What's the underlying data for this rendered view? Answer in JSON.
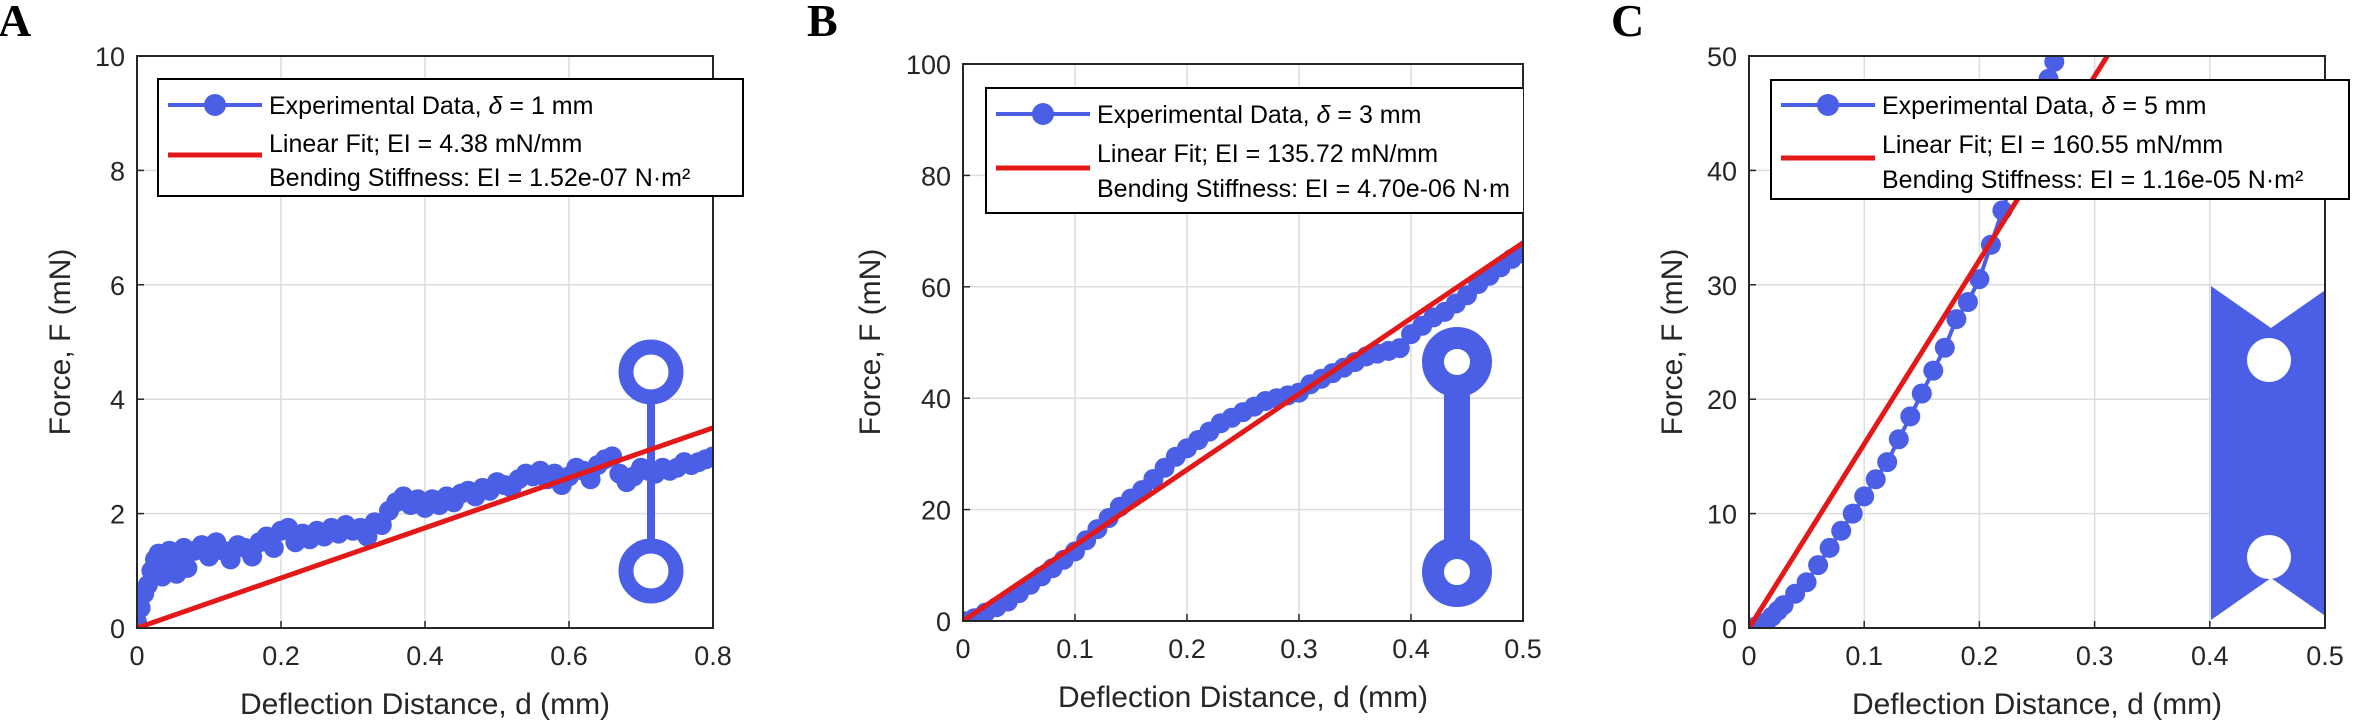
{
  "colors": {
    "data_series": "#4a5fe6",
    "fit_line": "#e31818",
    "inset_shape": "#4a5fe6",
    "grid": "#dcdcdc",
    "axes": "#262626"
  },
  "chart_data": [
    {
      "type": "line",
      "panel_label": "A",
      "xlabel": "Deflection Distance, d (mm)",
      "ylabel": "Force, F (mN)",
      "xlim": [
        0,
        0.8
      ],
      "ylim": [
        0,
        10
      ],
      "xticks": [
        0,
        0.2,
        0.4,
        0.6,
        0.8
      ],
      "xtick_labels": [
        "0",
        "0.2",
        "0.4",
        "0.6",
        "0.8"
      ],
      "yticks": [
        0,
        2,
        4,
        6,
        8,
        10
      ],
      "ytick_labels": [
        "0",
        "2",
        "4",
        "6",
        "8",
        "10"
      ],
      "grid": true,
      "legend_location": "top",
      "legend": {
        "experimental_prefix": "Experimental Data, ",
        "delta_symbol": "δ",
        "delta_value": " = 1 mm",
        "fit_line1": "Linear Fit; EI = 4.38 mN/mm",
        "fit_line2": "Bending Stiffness: EI = 1.52e-07 N·m²"
      },
      "series": [
        {
          "name": "Experimental Data, δ = 1 mm",
          "x": [
            0,
            0.005,
            0.01,
            0.015,
            0.02,
            0.025,
            0.03,
            0.035,
            0.04,
            0.045,
            0.05,
            0.055,
            0.06,
            0.065,
            0.07,
            0.08,
            0.09,
            0.1,
            0.11,
            0.12,
            0.13,
            0.14,
            0.15,
            0.16,
            0.17,
            0.18,
            0.19,
            0.2,
            0.21,
            0.22,
            0.23,
            0.24,
            0.25,
            0.26,
            0.27,
            0.28,
            0.29,
            0.3,
            0.31,
            0.32,
            0.33,
            0.34,
            0.35,
            0.36,
            0.37,
            0.38,
            0.39,
            0.4,
            0.41,
            0.42,
            0.43,
            0.44,
            0.45,
            0.46,
            0.47,
            0.48,
            0.49,
            0.5,
            0.51,
            0.52,
            0.53,
            0.54,
            0.55,
            0.56,
            0.57,
            0.58,
            0.59,
            0.6,
            0.61,
            0.62,
            0.63,
            0.64,
            0.65,
            0.66,
            0.67,
            0.68,
            0.69,
            0.7,
            0.71,
            0.72,
            0.73,
            0.74,
            0.75,
            0.76,
            0.77,
            0.78,
            0.79,
            0.8
          ],
          "y": [
            0.1,
            0.35,
            0.6,
            0.75,
            1.0,
            1.2,
            1.3,
            0.9,
            1.1,
            1.35,
            1.2,
            0.95,
            1.2,
            1.4,
            1.05,
            1.35,
            1.45,
            1.25,
            1.5,
            1.35,
            1.2,
            1.45,
            1.4,
            1.25,
            1.5,
            1.6,
            1.4,
            1.7,
            1.75,
            1.5,
            1.65,
            1.55,
            1.7,
            1.6,
            1.75,
            1.65,
            1.8,
            1.7,
            1.75,
            1.6,
            1.85,
            1.8,
            2.05,
            2.2,
            2.3,
            2.15,
            2.25,
            2.1,
            2.25,
            2.15,
            2.3,
            2.2,
            2.35,
            2.4,
            2.3,
            2.45,
            2.4,
            2.55,
            2.5,
            2.45,
            2.6,
            2.7,
            2.65,
            2.75,
            2.6,
            2.7,
            2.5,
            2.65,
            2.8,
            2.75,
            2.6,
            2.85,
            2.95,
            3.0,
            2.7,
            2.55,
            2.65,
            2.8,
            2.75,
            2.7,
            2.8,
            2.75,
            2.8,
            2.9,
            2.85,
            2.9,
            2.95,
            3.0
          ]
        },
        {
          "name": "Linear Fit; EI = 4.38 mN/mm",
          "x": [
            0,
            0.8
          ],
          "y": [
            0,
            3.5
          ]
        }
      ]
    },
    {
      "type": "line",
      "panel_label": "B",
      "xlabel": "Deflection Distance, d (mm)",
      "ylabel": "Force, F (mN)",
      "xlim": [
        0,
        0.5
      ],
      "ylim": [
        0,
        100
      ],
      "xticks": [
        0,
        0.1,
        0.2,
        0.3,
        0.4,
        0.5
      ],
      "xtick_labels": [
        "0",
        "0.1",
        "0.2",
        "0.3",
        "0.4",
        "0.5"
      ],
      "yticks": [
        0,
        20,
        40,
        60,
        80,
        100
      ],
      "ytick_labels": [
        "0",
        "20",
        "40",
        "60",
        "80",
        "100"
      ],
      "grid": true,
      "legend_location": "top",
      "legend": {
        "experimental_prefix": "Experimental Data, ",
        "delta_symbol": "δ",
        "delta_value": " = 3 mm",
        "fit_line1": "Linear Fit; EI = 135.72 mN/mm",
        "fit_line2": "Bending Stiffness: EI = 4.70e-06 N·m"
      },
      "series": [
        {
          "name": "Experimental Data, δ = 3 mm",
          "x": [
            0,
            0.01,
            0.02,
            0.03,
            0.04,
            0.05,
            0.06,
            0.07,
            0.08,
            0.09,
            0.1,
            0.11,
            0.12,
            0.13,
            0.14,
            0.15,
            0.16,
            0.17,
            0.18,
            0.19,
            0.2,
            0.21,
            0.22,
            0.23,
            0.24,
            0.25,
            0.26,
            0.27,
            0.28,
            0.29,
            0.3,
            0.31,
            0.32,
            0.33,
            0.34,
            0.35,
            0.36,
            0.37,
            0.38,
            0.39,
            0.4,
            0.41,
            0.42,
            0.43,
            0.44,
            0.45,
            0.46,
            0.47,
            0.48,
            0.49,
            0.5
          ],
          "y": [
            0,
            0.5,
            1.5,
            2.5,
            3.5,
            5.0,
            6.5,
            8.0,
            9.5,
            11.0,
            12.5,
            14.5,
            16.5,
            18.5,
            20.5,
            22.0,
            23.5,
            25.5,
            27.5,
            29.5,
            31.0,
            32.5,
            34.0,
            35.5,
            36.5,
            37.5,
            38.5,
            39.5,
            40.0,
            40.5,
            41.0,
            42.5,
            43.5,
            44.5,
            45.5,
            46.5,
            47.5,
            48.0,
            48.5,
            49.0,
            51.5,
            53.0,
            54.5,
            55.5,
            57.0,
            58.5,
            60.5,
            62.0,
            63.5,
            65.0,
            66.0
          ]
        },
        {
          "name": "Linear Fit; EI = 135.72 mN/mm",
          "x": [
            0,
            0.5
          ],
          "y": [
            0,
            67.9
          ]
        }
      ]
    },
    {
      "type": "line",
      "panel_label": "C",
      "xlabel": "Deflection Distance, d (mm)",
      "ylabel": "Force, F (mN)",
      "xlim": [
        0,
        0.5
      ],
      "ylim": [
        0,
        50
      ],
      "xticks": [
        0,
        0.1,
        0.2,
        0.3,
        0.4,
        0.5
      ],
      "xtick_labels": [
        "0",
        "0.1",
        "0.2",
        "0.3",
        "0.4",
        "0.5"
      ],
      "yticks": [
        0,
        10,
        20,
        30,
        40,
        50
      ],
      "ytick_labels": [
        "0",
        "10",
        "20",
        "30",
        "40",
        "50"
      ],
      "grid": true,
      "legend_location": "top",
      "legend": {
        "experimental_prefix": "Experimental Data, ",
        "delta_symbol": "δ",
        "delta_value": " = 5 mm",
        "fit_line1": "Linear Fit; EI = 160.55 mN/mm",
        "fit_line2": "Bending Stiffness: EI = 1.16e-05 N·m²"
      },
      "series": [
        {
          "name": "Experimental Data, δ = 5 mm",
          "x": [
            0,
            0.005,
            0.01,
            0.015,
            0.02,
            0.025,
            0.03,
            0.04,
            0.05,
            0.06,
            0.07,
            0.08,
            0.09,
            0.1,
            0.11,
            0.12,
            0.13,
            0.14,
            0.15,
            0.16,
            0.17,
            0.18,
            0.19,
            0.2,
            0.21,
            0.22,
            0.23,
            0.24,
            0.25,
            0.26,
            0.265
          ],
          "y": [
            0,
            0.1,
            0.2,
            0.5,
            1.0,
            1.5,
            2.0,
            3.0,
            4.0,
            5.5,
            7.0,
            8.5,
            10.0,
            11.5,
            13.0,
            14.5,
            16.5,
            18.5,
            20.5,
            22.5,
            24.5,
            27.0,
            28.5,
            30.5,
            33.5,
            36.5,
            39.5,
            42.5,
            45.5,
            48.0,
            49.5
          ]
        },
        {
          "name": "Linear Fit; EI = 160.55 mN/mm",
          "x": [
            0,
            0.311
          ],
          "y": [
            0,
            50
          ]
        }
      ]
    }
  ]
}
